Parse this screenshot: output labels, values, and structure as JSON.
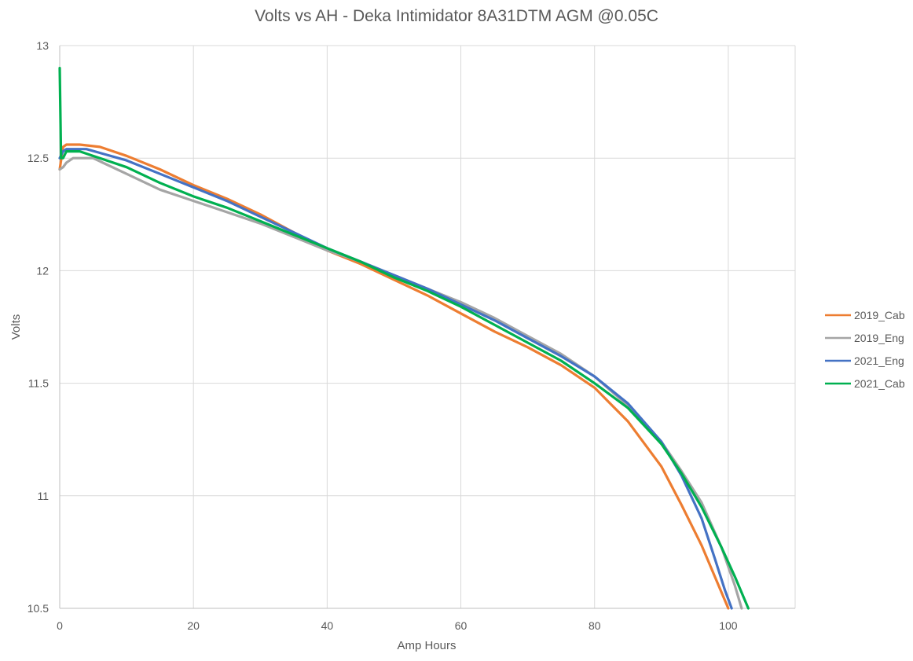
{
  "chart_data": {
    "type": "line",
    "title": "Volts vs AH - Deka Intimidator 8A31DTM AGM @0.05C",
    "xlabel": "Amp Hours",
    "ylabel": "Volts",
    "xlim": [
      0,
      110
    ],
    "ylim": [
      10.5,
      13
    ],
    "xticks": [
      "0",
      "20",
      "40",
      "60",
      "80",
      "100"
    ],
    "yticks": [
      "10.5",
      "11",
      "11.5",
      "12",
      "12.5",
      "13"
    ],
    "grid": true,
    "legend_position": "right",
    "series": [
      {
        "name": "2019_Cab",
        "color": "#ED7D31",
        "points": [
          [
            0,
            12.45
          ],
          [
            0.5,
            12.55
          ],
          [
            1,
            12.56
          ],
          [
            3,
            12.56
          ],
          [
            6,
            12.55
          ],
          [
            10,
            12.51
          ],
          [
            15,
            12.45
          ],
          [
            20,
            12.38
          ],
          [
            25,
            12.32
          ],
          [
            30,
            12.25
          ],
          [
            35,
            12.17
          ],
          [
            40,
            12.09
          ],
          [
            45,
            12.03
          ],
          [
            50,
            11.96
          ],
          [
            55,
            11.89
          ],
          [
            60,
            11.81
          ],
          [
            65,
            11.73
          ],
          [
            70,
            11.66
          ],
          [
            75,
            11.58
          ],
          [
            80,
            11.48
          ],
          [
            85,
            11.33
          ],
          [
            90,
            11.13
          ],
          [
            93,
            10.96
          ],
          [
            96,
            10.78
          ],
          [
            98,
            10.64
          ],
          [
            100,
            10.5
          ]
        ]
      },
      {
        "name": "2019_Eng",
        "color": "#A5A5A5",
        "points": [
          [
            0,
            12.45
          ],
          [
            0.5,
            12.46
          ],
          [
            1,
            12.48
          ],
          [
            2,
            12.5
          ],
          [
            5,
            12.5
          ],
          [
            10,
            12.43
          ],
          [
            15,
            12.36
          ],
          [
            20,
            12.31
          ],
          [
            25,
            12.26
          ],
          [
            30,
            12.21
          ],
          [
            35,
            12.15
          ],
          [
            40,
            12.09
          ],
          [
            45,
            12.04
          ],
          [
            50,
            11.98
          ],
          [
            55,
            11.92
          ],
          [
            60,
            11.86
          ],
          [
            65,
            11.79
          ],
          [
            70,
            11.71
          ],
          [
            75,
            11.63
          ],
          [
            80,
            11.53
          ],
          [
            85,
            11.4
          ],
          [
            90,
            11.24
          ],
          [
            93,
            11.11
          ],
          [
            96,
            10.97
          ],
          [
            99,
            10.77
          ],
          [
            101,
            10.6
          ],
          [
            102,
            10.5
          ]
        ]
      },
      {
        "name": "2021_Eng",
        "color": "#4472C4",
        "points": [
          [
            0,
            12.5
          ],
          [
            0.5,
            12.53
          ],
          [
            1,
            12.54
          ],
          [
            4,
            12.54
          ],
          [
            10,
            12.49
          ],
          [
            15,
            12.43
          ],
          [
            20,
            12.37
          ],
          [
            25,
            12.31
          ],
          [
            30,
            12.24
          ],
          [
            35,
            12.17
          ],
          [
            40,
            12.1
          ],
          [
            45,
            12.04
          ],
          [
            50,
            11.98
          ],
          [
            55,
            11.92
          ],
          [
            60,
            11.85
          ],
          [
            65,
            11.78
          ],
          [
            70,
            11.7
          ],
          [
            75,
            11.62
          ],
          [
            80,
            11.53
          ],
          [
            85,
            11.41
          ],
          [
            90,
            11.24
          ],
          [
            93,
            11.09
          ],
          [
            96,
            10.9
          ],
          [
            98,
            10.72
          ],
          [
            99.5,
            10.58
          ],
          [
            100.5,
            10.5
          ]
        ]
      },
      {
        "name": "2021_Cab",
        "color": "#00B050",
        "points": [
          [
            0,
            12.9
          ],
          [
            0.2,
            12.5
          ],
          [
            0.5,
            12.5
          ],
          [
            1,
            12.53
          ],
          [
            3,
            12.53
          ],
          [
            10,
            12.46
          ],
          [
            15,
            12.39
          ],
          [
            20,
            12.33
          ],
          [
            25,
            12.28
          ],
          [
            30,
            12.22
          ],
          [
            35,
            12.16
          ],
          [
            40,
            12.1
          ],
          [
            45,
            12.04
          ],
          [
            50,
            11.97
          ],
          [
            55,
            11.91
          ],
          [
            60,
            11.84
          ],
          [
            65,
            11.76
          ],
          [
            70,
            11.68
          ],
          [
            75,
            11.6
          ],
          [
            80,
            11.5
          ],
          [
            85,
            11.39
          ],
          [
            90,
            11.23
          ],
          [
            93,
            11.1
          ],
          [
            96,
            10.95
          ],
          [
            99,
            10.77
          ],
          [
            101,
            10.64
          ],
          [
            103,
            10.5
          ]
        ]
      }
    ]
  }
}
